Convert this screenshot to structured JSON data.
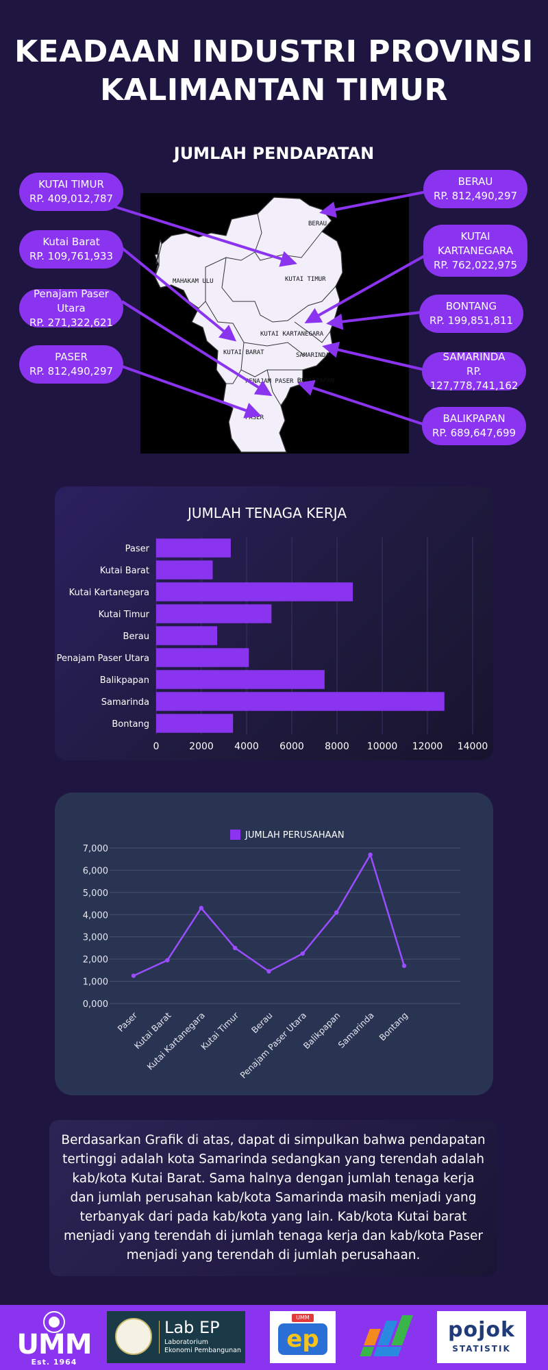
{
  "page": {
    "title_line1": "KEADAAN INDUSTRI PROVINSI",
    "title_line2": "KALIMANTAN TIMUR",
    "map_title": "JUMLAH PENDAPATAN"
  },
  "colors": {
    "background": "#1e1640",
    "accent": "#8b34f0",
    "bar": "#8b34f0",
    "line": "#9b4dff"
  },
  "map": {
    "region_labels": [
      "BERAU",
      "MAHAKAM ULU",
      "KUTAI TIMUR",
      "KUTAI KARTANEGARA",
      "KUTAI BARAT",
      "SAMARINDA",
      "PENAJAM PASER UTARA",
      "BALIKPAPAN",
      "PASER"
    ],
    "callouts": {
      "kutai_timur": {
        "name": "KUTAI TIMUR",
        "value": "RP. 409,012,787"
      },
      "kutai_barat": {
        "name": "Kutai Barat",
        "value": "RP. 109,761,933"
      },
      "penajam": {
        "name": "Penajam Paser Utara",
        "value": "RP. 271,322,621"
      },
      "paser": {
        "name": "PASER",
        "value": "RP. 812,490,297"
      },
      "berau": {
        "name": "BERAU",
        "value": "RP. 812,490,297"
      },
      "kutai_kartanegara": {
        "name_line1": "KUTAI",
        "name_line2": "KARTANEGARA",
        "value": "RP. 762,022,975"
      },
      "bontang": {
        "name": "BONTANG",
        "value": "RP. 199,851,811"
      },
      "samarinda": {
        "name": "SAMARINDA",
        "value": "RP. 127,778,741,162"
      },
      "balikpapan": {
        "name": "BALIKPAPAN",
        "value": "RP. 689,647,699"
      }
    }
  },
  "chart_data": [
    {
      "type": "bar",
      "orientation": "horizontal",
      "title": "JUMLAH TENAGA KERJA",
      "categories": [
        "Paser",
        "Kutai Barat",
        "Kutai Kartanegara",
        "Kutai Timur",
        "Berau",
        "Penajam Paser Utara",
        "Balikpapan",
        "Samarinda",
        "Bontang"
      ],
      "values": [
        3300,
        2500,
        8700,
        5100,
        2700,
        4100,
        7450,
        12750,
        3400
      ],
      "xlim": [
        0,
        14000
      ],
      "xticks": [
        "0",
        "2000",
        "4000",
        "6000",
        "8000",
        "10000",
        "12000",
        "14000"
      ],
      "grid": true
    },
    {
      "type": "line",
      "series": [
        {
          "name": "JUMLAH PERUSAHAAN",
          "values": [
            1250,
            1950,
            4300,
            2500,
            1450,
            2250,
            4100,
            6700,
            1700
          ]
        }
      ],
      "categories": [
        "Paser",
        "Kutai Barat",
        "Kutai Kartanegara",
        "Kutai Timur",
        "Berau",
        "Penajam Paser Utara",
        "Balikpapan",
        "Samarinda",
        "Bontang"
      ],
      "ylim": [
        0,
        7000
      ],
      "yticks": [
        "0,000",
        "1,000",
        "2,000",
        "3,000",
        "4,000",
        "5,000",
        "6,000",
        "7,000"
      ],
      "legend": "top-center",
      "grid": true
    }
  ],
  "conclusion": "Berdasarkan Grafik di atas, dapat di simpulkan bahwa pendapatan tertinggi adalah kota Samarinda sedangkan yang terendah adalah kab/kota Kutai Barat. Sama halnya dengan jumlah tenaga kerja dan jumlah perusahan kab/kota Samarinda masih menjadi yang terbanyak dari pada kab/kota yang lain. Kab/kota Kutai barat menjadi yang terendah di jumlah tenaga kerja dan kab/kota Paser menjadi yang terendah di jumlah perusahaan.",
  "footer": {
    "umm_text": "UMM",
    "umm_est": "Est. 1964",
    "lab_name": "Laboratorium",
    "lab_sub": "Ekonomi Pembangunan",
    "ep_tag": "UMM",
    "ep_text": "ep",
    "pojok_text": "pojok",
    "pojok_sub": "STATISTIK",
    "icons": [
      "umm-logo-icon",
      "lab-logo-icon",
      "ep-logo-icon",
      "bps-logo-icon",
      "pojok-statistik-logo-icon"
    ]
  }
}
